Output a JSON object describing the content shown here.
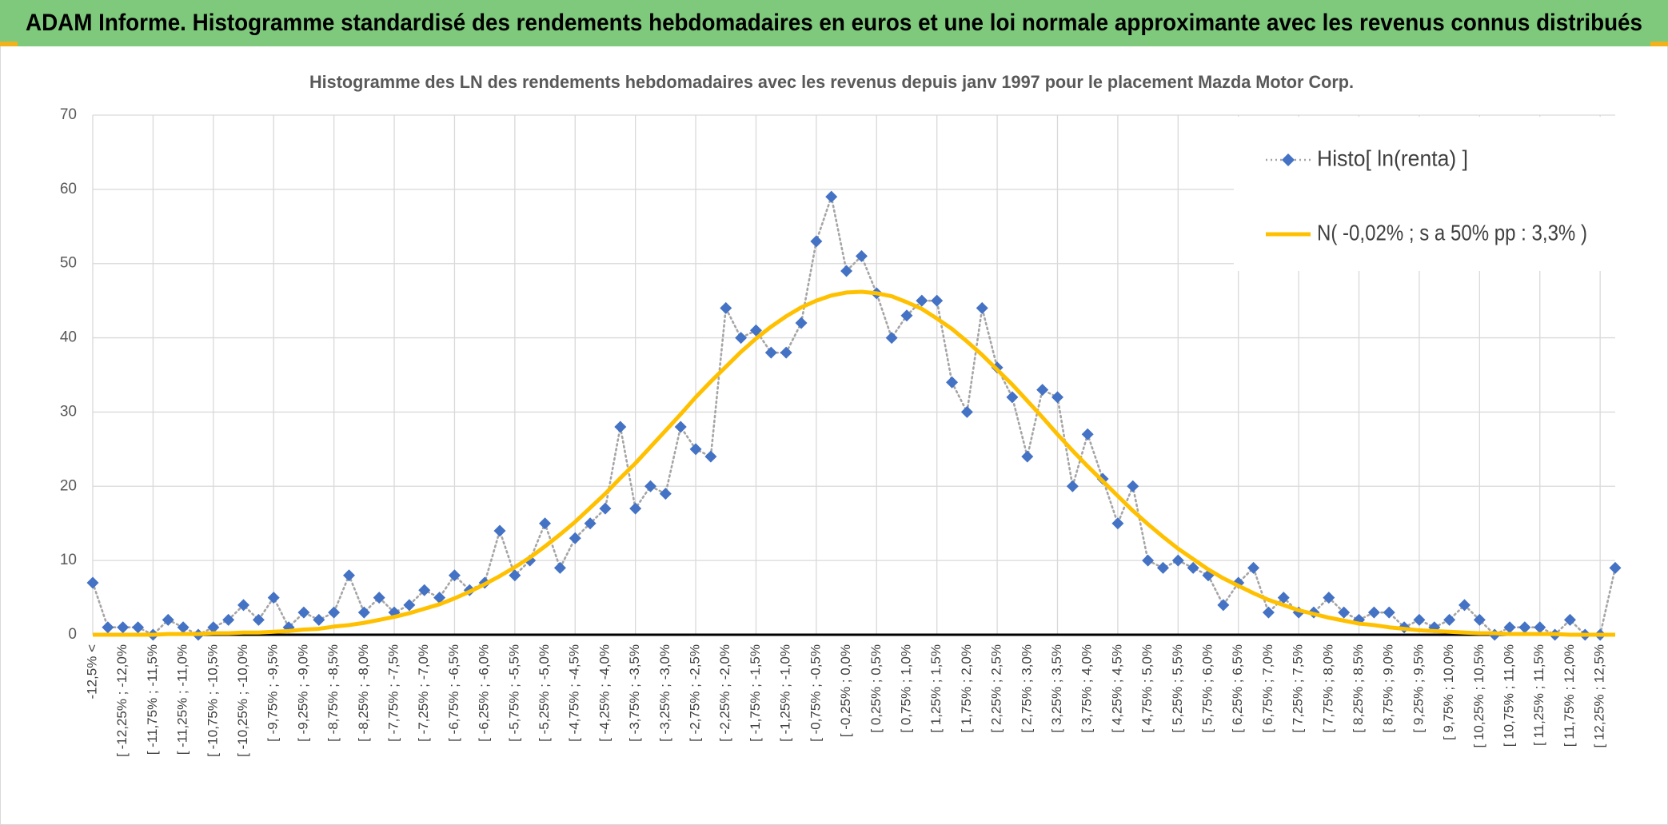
{
  "banner": "ADAM Informe. Histogramme standardisé des rendements hebdomadaires en euros et une loi normale approximante avec les revenus connus distribués",
  "chart_data": {
    "type": "line",
    "title": "Histogramme des LN des rendements hebdomadaires avec les revenus depuis janv 1997 pour le placement Mazda Motor Corp.",
    "categories": [
      "-12,5% <",
      null,
      "[ -12,25% ; -12,0%",
      null,
      "[ -11,75% ; -11,5%",
      null,
      "[ -11,25% ; -11,0%",
      null,
      "[ -10,75% ; -10,5%",
      null,
      "[ -10,25% ; -10,0%",
      null,
      "[ -9,75% ; -9,5%",
      null,
      "[ -9,25% ; -9,0%",
      null,
      "[ -8,75% ; -8,5%",
      null,
      "[ -8,25% ; -8,0%",
      null,
      "[ -7,75% ; -7,5%",
      null,
      "[ -7,25% ; -7,0%",
      null,
      "[ -6,75% ; -6,5%",
      null,
      "[ -6,25% ; -6,0%",
      null,
      "[ -5,75% ; -5,5%",
      null,
      "[ -5,25% ; -5,0%",
      null,
      "[ -4,75% ; -4,5%",
      null,
      "[ -4,25% ; -4,0%",
      null,
      "[ -3,75% ; -3,5%",
      null,
      "[ -3,25% ; -3,0%",
      null,
      "[ -2,75% ; -2,5%",
      null,
      "[ -2,25% ; -2,0%",
      null,
      "[ -1,75% ; -1,5%",
      null,
      "[ -1,25% ; -1,0%",
      null,
      "[ -0,75% ; -0,5%",
      null,
      "[ -0,25% ; 0,0%",
      null,
      "[ 0,25% ; 0,5%",
      null,
      "[ 0,75% ; 1,0%",
      null,
      "[ 1,25% ; 1,5%",
      null,
      "[ 1,75% ; 2,0%",
      null,
      "[ 2,25% ; 2,5%",
      null,
      "[ 2,75% ; 3,0%",
      null,
      "[ 3,25% ; 3,5%",
      null,
      "[ 3,75% ; 4,0%",
      null,
      "[ 4,25% ; 4,5%",
      null,
      "[ 4,75% ; 5,0%",
      null,
      "[ 5,25% ; 5,5%",
      null,
      "[ 5,75% ; 6,0%",
      null,
      "[ 6,25% ; 6,5%",
      null,
      "[ 6,75% ; 7,0%",
      null,
      "[ 7,25% ; 7,5%",
      null,
      "[ 7,75% ; 8,0%",
      null,
      "[ 8,25% ; 8,5%",
      null,
      "[ 8,75% ; 9,0%",
      null,
      "[ 9,25% ; 9,5%",
      null,
      "[ 9,75% ; 10,0%",
      null,
      "[ 10,25% ; 10,5%",
      null,
      "[ 10,75% ; 11,0%",
      null,
      "[ 11,25% ; 11,5%",
      null,
      "[ 11,75% ; 12,0%",
      null,
      "[ 12,25% ; 12,5%",
      null
    ],
    "series": [
      {
        "name": "Histo[ ln(renta) ]",
        "color": "#4472c4",
        "line_color": "#a5a5a5",
        "marker": "diamond",
        "values": [
          7,
          1,
          1,
          1,
          0,
          2,
          1,
          0,
          1,
          2,
          4,
          2,
          5,
          1,
          3,
          2,
          3,
          8,
          3,
          5,
          3,
          4,
          6,
          5,
          8,
          6,
          7,
          14,
          8,
          10,
          15,
          9,
          13,
          15,
          17,
          28,
          17,
          20,
          19,
          28,
          25,
          24,
          44,
          40,
          41,
          38,
          38,
          42,
          53,
          59,
          49,
          51,
          46,
          40,
          43,
          45,
          45,
          34,
          30,
          44,
          36,
          32,
          24,
          33,
          32,
          20,
          27,
          21,
          15,
          20,
          10,
          9,
          10,
          9,
          8,
          4,
          7,
          9,
          3,
          5,
          3,
          3,
          5,
          3,
          2,
          3,
          3,
          1,
          2,
          1,
          2,
          4,
          2,
          0,
          1,
          1,
          1,
          0,
          2,
          0,
          0,
          9
        ]
      },
      {
        "name": "N( -0,02% ; s a 50% pp : 3,3% )",
        "color": "#ffc000",
        "marker": "none",
        "values": [
          0.0,
          0.0,
          0.0,
          0.0,
          0.0,
          0.1,
          0.1,
          0.1,
          0.2,
          0.2,
          0.3,
          0.3,
          0.4,
          0.5,
          0.7,
          0.8,
          1.1,
          1.3,
          1.6,
          2.0,
          2.4,
          2.9,
          3.5,
          4.1,
          4.9,
          5.8,
          6.8,
          7.9,
          9.1,
          10.4,
          11.9,
          13.5,
          15.2,
          17.1,
          19.0,
          21.1,
          23.1,
          25.3,
          27.5,
          29.7,
          32.0,
          34.1,
          36.1,
          38.1,
          39.9,
          41.5,
          42.9,
          44.1,
          45.0,
          45.7,
          46.1,
          46.2,
          46.0,
          45.6,
          44.8,
          43.9,
          42.6,
          41.2,
          39.5,
          37.7,
          35.7,
          33.7,
          31.5,
          29.3,
          27.0,
          24.8,
          22.7,
          20.7,
          18.7,
          16.7,
          14.9,
          13.2,
          11.6,
          10.2,
          8.8,
          7.6,
          6.6,
          5.6,
          4.7,
          4.0,
          3.3,
          2.8,
          2.3,
          1.9,
          1.5,
          1.3,
          1.0,
          0.8,
          0.6,
          0.5,
          0.4,
          0.3,
          0.2,
          0.2,
          0.1,
          0.1,
          0.1,
          0.1,
          0.0,
          0.0,
          0.0,
          0.0
        ]
      }
    ],
    "ylim": [
      0,
      70
    ],
    "yticks": [
      0,
      10,
      20,
      30,
      40,
      50,
      60,
      70
    ],
    "grid": true,
    "legend": "upper right"
  }
}
